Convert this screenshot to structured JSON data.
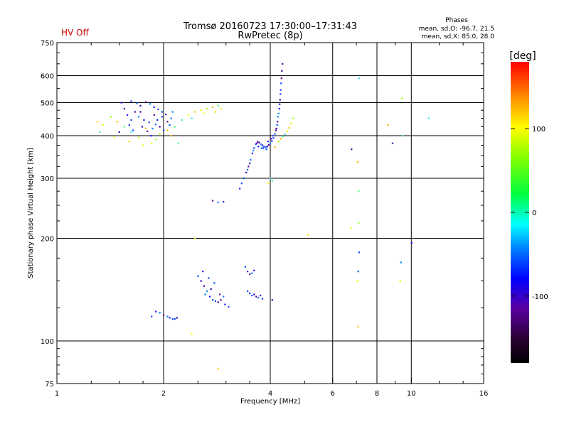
{
  "header": {
    "title_line1": "Tromsø 20160723 17:30:00–17:31:43",
    "title_line2": "RwPretec (8p)",
    "status": "HV Off",
    "phases_title": "Phases",
    "phases_line1": "mean, sd,O: -96.7, 21.5",
    "phases_line2": "mean, sd,X:  85.0, 28.0",
    "status_color": "#cc0000"
  },
  "chart_data": {
    "type": "scatter",
    "title": "Tromsø 20160723 17:30:00–17:31:43",
    "subtitle": "RwPretec (8p)",
    "xlabel": "Frequency [MHz]",
    "ylabel": "Stationary phase Virtual Height [km]",
    "x_scale": "log2",
    "y_scale": "log",
    "xlim": [
      1,
      16
    ],
    "ylim": [
      75,
      750
    ],
    "x_ticks": [
      1,
      2,
      4,
      6,
      8,
      10,
      16
    ],
    "x_tick_labels": [
      "1",
      "2",
      "4",
      "6",
      "8",
      "10",
      "16"
    ],
    "y_ticks": [
      75,
      100,
      200,
      300,
      400,
      500,
      600,
      750
    ],
    "y_tick_labels": [
      "75",
      "100",
      "200",
      "300",
      "400",
      "500",
      "600",
      "750"
    ],
    "grid": true,
    "colorbar": {
      "label": "[deg]",
      "range": [
        -180,
        180
      ],
      "ticks": [
        -100,
        0,
        100
      ],
      "tick_labels": [
        "-100",
        "0",
        "100"
      ]
    },
    "series": [
      {
        "name": "O",
        "points": [
          [
            1.52,
            500
          ],
          [
            1.62,
            505
          ],
          [
            1.68,
            498
          ],
          [
            1.72,
            490
          ],
          [
            1.78,
            502
          ],
          [
            1.83,
            496
          ],
          [
            1.88,
            485
          ],
          [
            1.93,
            478
          ],
          [
            1.98,
            470
          ],
          [
            2.03,
            462
          ],
          [
            1.66,
            470
          ],
          [
            1.7,
            455
          ],
          [
            1.76,
            445
          ],
          [
            1.82,
            438
          ],
          [
            1.9,
            432
          ],
          [
            1.95,
            425
          ],
          [
            2.05,
            440
          ],
          [
            2.1,
            450
          ],
          [
            1.58,
            460
          ],
          [
            1.6,
            430
          ],
          [
            1.64,
            415
          ],
          [
            1.74,
            425
          ],
          [
            1.8,
            412
          ],
          [
            1.86,
            420
          ],
          [
            1.92,
            445
          ],
          [
            1.98,
            455
          ],
          [
            2.08,
            430
          ],
          [
            1.5,
            410
          ],
          [
            1.55,
            480
          ],
          [
            1.7,
            395
          ],
          [
            1.84,
            400
          ],
          [
            2.0,
            415
          ],
          [
            1.62,
            445
          ],
          [
            1.72,
            470
          ],
          [
            1.88,
            460
          ],
          [
            2.12,
            470
          ],
          [
            3.28,
            280
          ],
          [
            3.32,
            290
          ],
          [
            3.37,
            300
          ],
          [
            3.42,
            312
          ],
          [
            3.47,
            325
          ],
          [
            3.52,
            340
          ],
          [
            3.56,
            355
          ],
          [
            3.6,
            368
          ],
          [
            3.64,
            378
          ],
          [
            3.68,
            384
          ],
          [
            3.72,
            382
          ],
          [
            3.76,
            378
          ],
          [
            3.8,
            375
          ],
          [
            3.84,
            372
          ],
          [
            3.88,
            370
          ],
          [
            3.92,
            372
          ],
          [
            3.96,
            376
          ],
          [
            4.0,
            380
          ],
          [
            4.04,
            386
          ],
          [
            4.08,
            394
          ],
          [
            4.12,
            405
          ],
          [
            4.16,
            420
          ],
          [
            4.19,
            440
          ],
          [
            4.22,
            465
          ],
          [
            4.25,
            495
          ],
          [
            4.27,
            530
          ],
          [
            4.29,
            570
          ],
          [
            4.31,
            620
          ],
          [
            4.33,
            650
          ],
          [
            3.58,
            362
          ],
          [
            3.7,
            372
          ],
          [
            3.82,
            368
          ],
          [
            3.9,
            365
          ],
          [
            4.02,
            392
          ],
          [
            4.15,
            415
          ],
          [
            4.2,
            455
          ],
          [
            4.24,
            480
          ],
          [
            4.28,
            545
          ],
          [
            3.45,
            318
          ],
          [
            3.5,
            332
          ],
          [
            3.66,
            380
          ],
          [
            3.78,
            368
          ],
          [
            3.94,
            385
          ],
          [
            4.06,
            400
          ],
          [
            4.18,
            430
          ],
          [
            4.26,
            510
          ],
          [
            4.3,
            590
          ],
          [
            2.05,
            118
          ],
          [
            2.08,
            117
          ],
          [
            2.12,
            116
          ],
          [
            2.15,
            116
          ],
          [
            2.18,
            117
          ],
          [
            2.0,
            119
          ],
          [
            1.95,
            121
          ],
          [
            1.9,
            122
          ],
          [
            1.85,
            118
          ],
          [
            2.5,
            155
          ],
          [
            2.55,
            150
          ],
          [
            2.6,
            145
          ],
          [
            2.65,
            140
          ],
          [
            2.7,
            135
          ],
          [
            2.75,
            132
          ],
          [
            2.8,
            131
          ],
          [
            2.85,
            130
          ],
          [
            2.9,
            132
          ],
          [
            2.95,
            135
          ],
          [
            2.58,
            160
          ],
          [
            2.68,
            153
          ],
          [
            2.78,
            148
          ],
          [
            2.72,
            142
          ],
          [
            2.88,
            137
          ],
          [
            2.62,
            137
          ],
          [
            2.98,
            128
          ],
          [
            3.05,
            126
          ],
          [
            3.4,
            165
          ],
          [
            3.45,
            160
          ],
          [
            3.5,
            157
          ],
          [
            3.55,
            158
          ],
          [
            3.6,
            161
          ],
          [
            3.5,
            138
          ],
          [
            3.55,
            136
          ],
          [
            3.6,
            137
          ],
          [
            3.65,
            135
          ],
          [
            3.7,
            134
          ],
          [
            3.75,
            136
          ],
          [
            3.8,
            133
          ],
          [
            3.45,
            140
          ],
          [
            4.05,
            132
          ],
          [
            2.75,
            258
          ],
          [
            2.85,
            255
          ],
          [
            2.95,
            256
          ],
          [
            7.12,
            182
          ],
          [
            7.08,
            160
          ],
          [
            6.78,
            365
          ],
          [
            8.85,
            380
          ],
          [
            9.35,
            170
          ],
          [
            10.02,
            194
          ]
        ]
      },
      {
        "name": "X",
        "points": [
          [
            1.3,
            440
          ],
          [
            1.35,
            430
          ],
          [
            1.42,
            455
          ],
          [
            1.48,
            440
          ],
          [
            1.55,
            425
          ],
          [
            1.62,
            410
          ],
          [
            1.7,
            395
          ],
          [
            1.78,
            420
          ],
          [
            1.85,
            380
          ],
          [
            1.95,
            405
          ],
          [
            2.05,
            415
          ],
          [
            2.15,
            425
          ],
          [
            2.25,
            445
          ],
          [
            2.35,
            460
          ],
          [
            2.45,
            470
          ],
          [
            2.55,
            475
          ],
          [
            2.65,
            480
          ],
          [
            2.75,
            485
          ],
          [
            2.85,
            490
          ],
          [
            1.32,
            410
          ],
          [
            1.45,
            395
          ],
          [
            1.6,
            385
          ],
          [
            1.75,
            375
          ],
          [
            1.9,
            390
          ],
          [
            2.1,
            400
          ],
          [
            2.2,
            380
          ],
          [
            2.4,
            450
          ],
          [
            2.6,
            465
          ],
          [
            2.8,
            470
          ],
          [
            2.9,
            480
          ],
          [
            4.22,
            385
          ],
          [
            4.28,
            392
          ],
          [
            4.34,
            398
          ],
          [
            4.4,
            404
          ],
          [
            4.46,
            412
          ],
          [
            4.52,
            422
          ],
          [
            4.58,
            435
          ],
          [
            4.64,
            450
          ],
          [
            4.12,
            370
          ],
          [
            4.05,
            295
          ],
          [
            4.0,
            300
          ],
          [
            3.95,
            290
          ],
          [
            5.1,
            205
          ],
          [
            6.75,
            215
          ],
          [
            7.1,
            222
          ],
          [
            7.05,
            335
          ],
          [
            7.1,
            275
          ],
          [
            7.12,
            590
          ],
          [
            7.05,
            150
          ],
          [
            7.08,
            110
          ],
          [
            9.3,
            150
          ],
          [
            9.4,
            515
          ],
          [
            8.6,
            430
          ],
          [
            9.45,
            400
          ],
          [
            11.2,
            450
          ],
          [
            2.4,
            105
          ],
          [
            2.85,
            83
          ],
          [
            2.45,
            200
          ]
        ]
      }
    ]
  }
}
